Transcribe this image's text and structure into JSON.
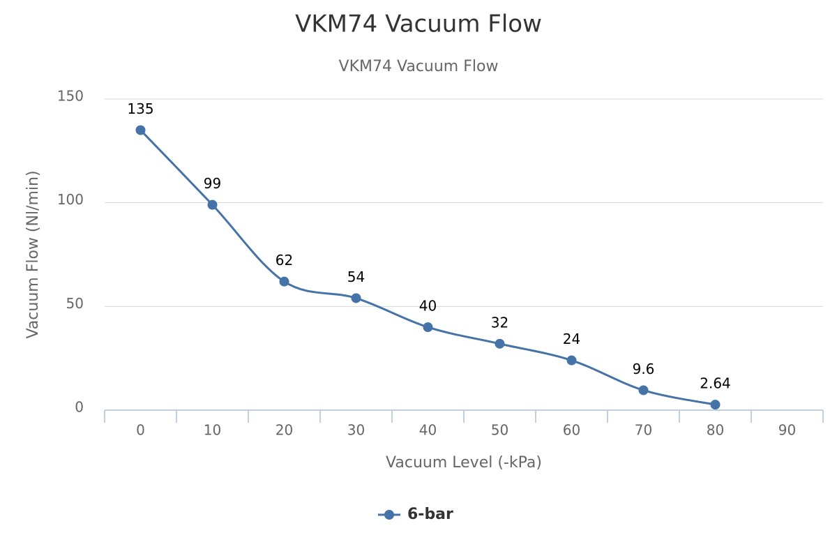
{
  "chart_data": {
    "type": "line",
    "title": "VKM74 Vacuum Flow",
    "subtitle": "VKM74 Vacuum Flow",
    "x_label": "Vacuum Level (-kPa)",
    "y_label": "Vacuum Flow (Nl/min)",
    "categories": [
      "0",
      "10",
      "20",
      "30",
      "40",
      "50",
      "60",
      "70",
      "80",
      "90"
    ],
    "series": [
      {
        "name": "6-bar",
        "color": "#4572a7",
        "values": [
          135,
          99,
          62,
          54,
          40,
          32,
          24,
          9.6,
          2.64,
          null
        ]
      }
    ],
    "ylim": [
      0,
      150
    ],
    "yticks": [
      0,
      50,
      100,
      150
    ],
    "grid": true,
    "legend": "bottom",
    "smooth": true
  }
}
